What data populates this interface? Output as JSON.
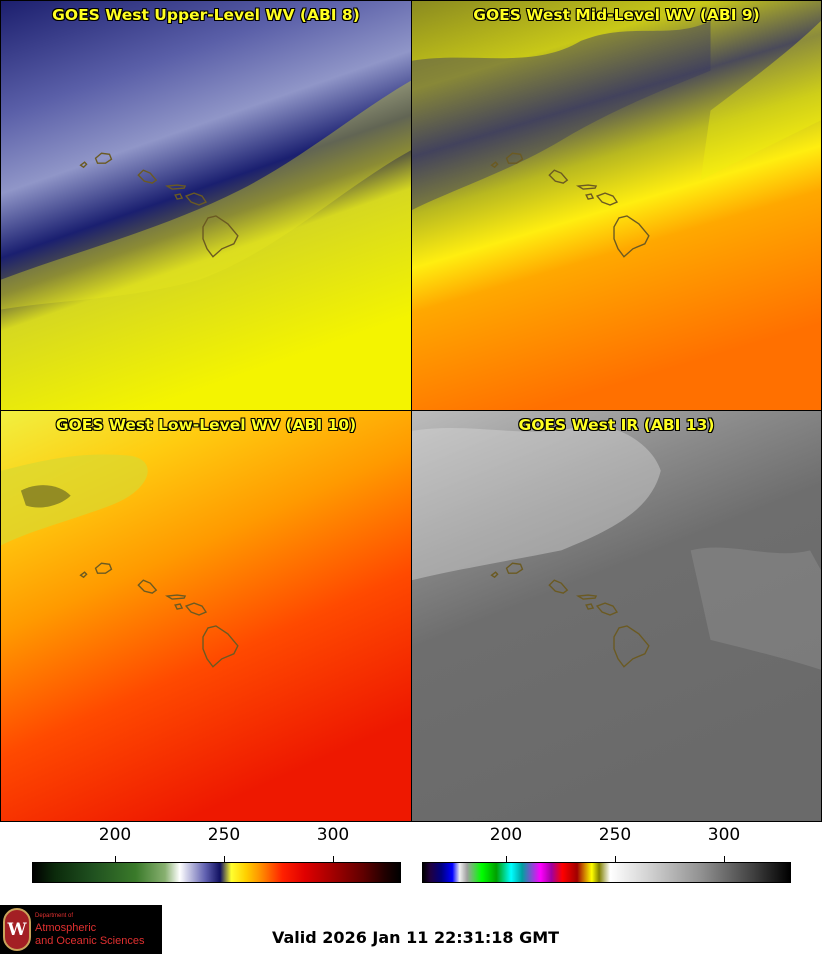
{
  "panels": [
    {
      "title": "GOES West Upper-Level WV (ABI 8)"
    },
    {
      "title": "GOES West Mid-Level WV (ABI 9)"
    },
    {
      "title": "GOES West Low-Level WV (ABI 10)"
    },
    {
      "title": "GOES West IR (ABI 13)"
    }
  ],
  "colorbars": [
    {
      "ticks": [
        "200",
        "250",
        "300"
      ]
    },
    {
      "ticks": [
        "200",
        "250",
        "300"
      ]
    }
  ],
  "logo": {
    "seal_letter": "W",
    "line1": "Department of",
    "line2": "Atmospheric",
    "line3": "and Oceanic Sciences"
  },
  "valid_text": "Valid 2026 Jan 11 22:31:18 GMT"
}
